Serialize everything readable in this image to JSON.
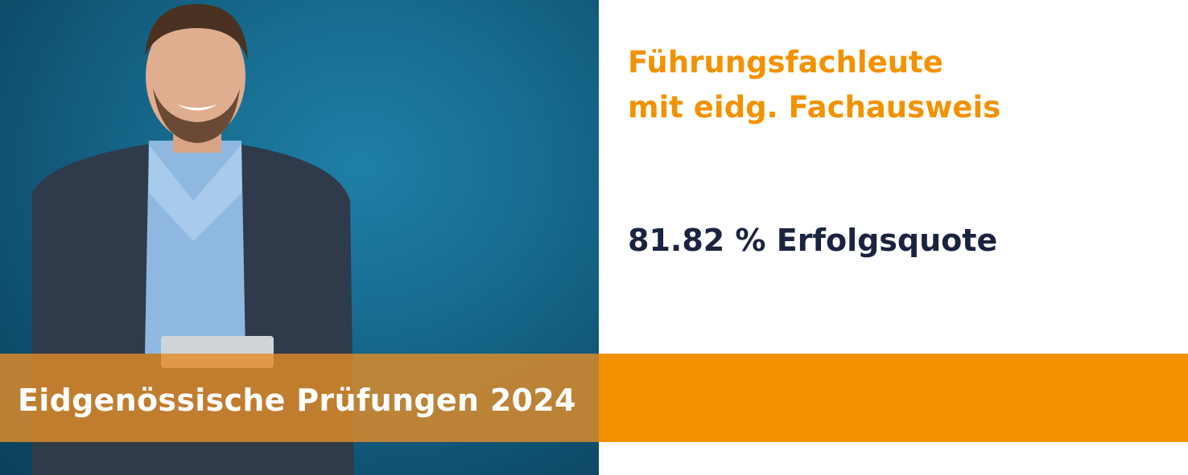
{
  "heading": {
    "line1": "Führungsfachleute",
    "line2": "mit eidg. Fachausweis"
  },
  "success_rate": "81.82 % Erfolgsquote",
  "banner_title": "Eidgenössische Prüfungen 2024",
  "colors": {
    "accent_orange": "#f29200",
    "text_navy": "#1b2340",
    "photo_blue": "#176c90"
  }
}
